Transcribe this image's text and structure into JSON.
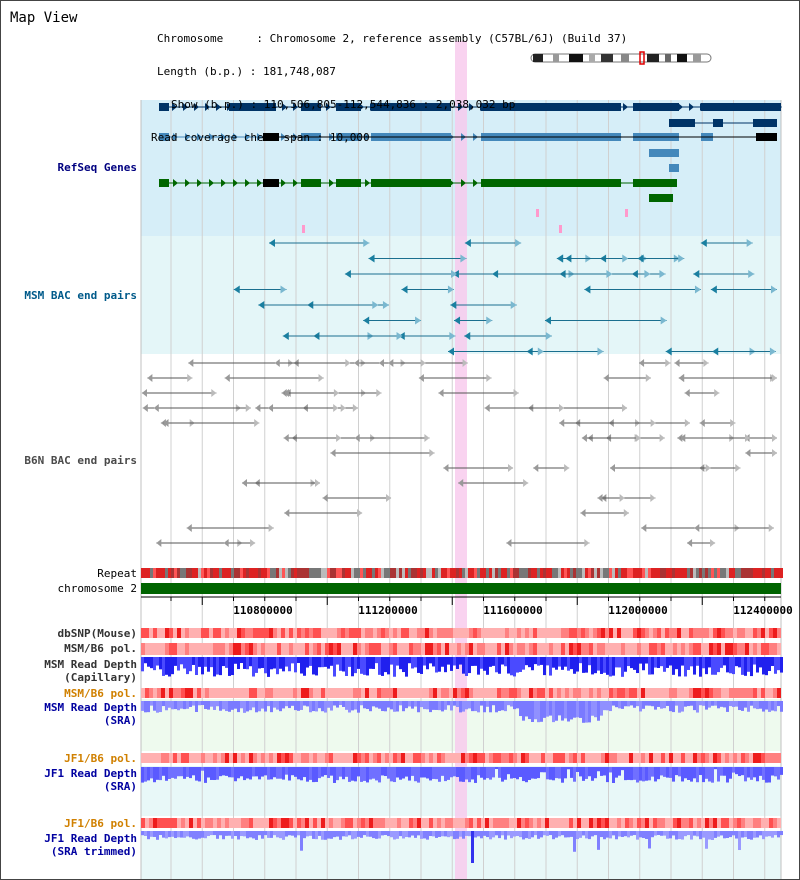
{
  "title": "Map View",
  "info": {
    "chromosome_key": "Chromosome",
    "chromosome_val": "Chromosome 2, reference assembly (C57BL/6J) (Build 37)",
    "length_key": "Length (b.p.)",
    "length_val": "181,748,087",
    "show_key": "Show (b.p.)",
    "show_val": "110,506,805-112,544,836 : 2,038,032 bp",
    "span_key": "Read coverage check span",
    "span_val": "10,000"
  },
  "axis": {
    "chromosome_label": "chromosome 2",
    "ticks": [
      "110800000",
      "111200000",
      "111600000",
      "112000000",
      "112400000"
    ]
  },
  "tracks": {
    "refseq": "RefSeq Genes",
    "msm_bac": "MSM BAC end pairs",
    "b6n_bac": "B6N BAC end pairs",
    "repeat": "Repeat",
    "dbsnp": "dbSNP(Mouse)",
    "msm_b6_pol_1": "MSM/B6 pol.",
    "msm_depth_cap_1": "MSM Read Depth",
    "msm_depth_cap_2": "(Capillary)",
    "msm_b6_pol_2": "MSM/B6 pol.",
    "msm_depth_sra_1": "MSM Read Depth",
    "msm_depth_sra_2": "(SRA)",
    "jf1_b6_pol_1": "JF1/B6 pol.",
    "jf1_depth_sra_1": "JF1 Read Depth",
    "jf1_depth_sra_2": "(SRA)",
    "jf1_b6_pol_2": "JF1/B6 pol.",
    "jf1_depth_trim_1": "JF1 Read Depth",
    "jf1_depth_trim_2": "(SRA trimmed)"
  },
  "colors": {
    "refseq_label": "#000080",
    "msm_bac_label": "#005a8a",
    "b6n_bac_label": "#4a4a4a",
    "orange_label": "#d08000",
    "blue_label": "#0000a0",
    "refseq_bg": "#d6eef8",
    "msm_bg": "#e4f6f8",
    "highlight": "#f7c8ec",
    "chromosome_bar": "#006400",
    "depth_blue": "#4040ff",
    "depth_light": "#8080ff"
  }
}
